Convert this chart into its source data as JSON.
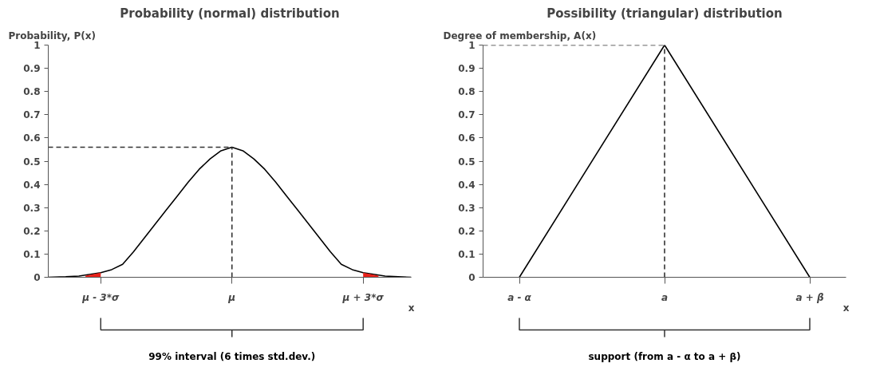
{
  "chart_data": [
    {
      "type": "line",
      "title": "Probability (normal) distribution",
      "ylabel": "Probability, P(x)",
      "xlabel": "x",
      "xlim": [
        -4.2,
        4.1
      ],
      "ylim": [
        0,
        1
      ],
      "xticks": [
        {
          "value": -3,
          "label": "μ - 3*σ"
        },
        {
          "value": 0,
          "label": "μ"
        },
        {
          "value": 3,
          "label": "μ + 3*σ"
        }
      ],
      "yticks": [
        0,
        0.1,
        0.2,
        0.3,
        0.4,
        0.5,
        0.6,
        0.7,
        0.8,
        0.9,
        1
      ],
      "grid": false,
      "annotations": [
        "99% interval (6 times std.dev.)"
      ],
      "series": [
        {
          "color": "#000000",
          "x": [
            -4.2,
            -3.8,
            -3.5,
            -3,
            -2.75,
            -2.5,
            -2.25,
            -2,
            -1.75,
            -1.5,
            -1.25,
            -1,
            -0.75,
            -0.5,
            -0.25,
            0,
            0.25,
            0.5,
            0.75,
            1,
            1.25,
            1.5,
            1.75,
            2,
            2.25,
            2.5,
            2.75,
            3,
            3.5,
            3.8,
            4.1
          ],
          "values": [
            0,
            0.002,
            0.005,
            0.02,
            0.033,
            0.056,
            0.11,
            0.17,
            0.23,
            0.29,
            0.35,
            0.41,
            0.465,
            0.51,
            0.545,
            0.56,
            0.545,
            0.51,
            0.465,
            0.41,
            0.35,
            0.29,
            0.23,
            0.17,
            0.11,
            0.056,
            0.033,
            0.02,
            0.005,
            0.002,
            0
          ]
        },
        {
          "type": "area",
          "color": "#e8221b",
          "x": [
            -3.35,
            -3
          ],
          "values": [
            0.007,
            0.02
          ]
        },
        {
          "type": "area",
          "color": "#e8221b",
          "x": [
            3,
            3.35
          ],
          "values": [
            0.02,
            0.007
          ]
        },
        {
          "line_style": "dashed",
          "color": "#333333",
          "x": [
            -4.2,
            0
          ],
          "values": [
            0.56,
            0.56
          ]
        },
        {
          "line_style": "dashed",
          "color": "#333333",
          "x": [
            0,
            0
          ],
          "values": [
            0,
            0.56
          ]
        }
      ]
    },
    {
      "type": "line",
      "title": "Possibility (triangular) distribution",
      "ylabel": "Degree of membership, A(x)",
      "xlabel": "x",
      "categories": [
        "a - α",
        "a",
        "a + β"
      ],
      "ylim": [
        0,
        1
      ],
      "yticks": [
        0,
        0.1,
        0.2,
        0.3,
        0.4,
        0.5,
        0.6,
        0.7,
        0.8,
        0.9,
        1
      ],
      "grid": false,
      "annotations": [
        "support (from a - α to a + β)"
      ],
      "series": [
        {
          "color": "#000000",
          "values": [
            0,
            1,
            0
          ]
        }
      ],
      "ref_lines": [
        {
          "axis": "y",
          "value": 1,
          "line_style": "dashed",
          "color": "#333333"
        },
        {
          "axis": "x",
          "value": "a",
          "line_style": "dashed",
          "color": "#333333"
        }
      ]
    }
  ]
}
